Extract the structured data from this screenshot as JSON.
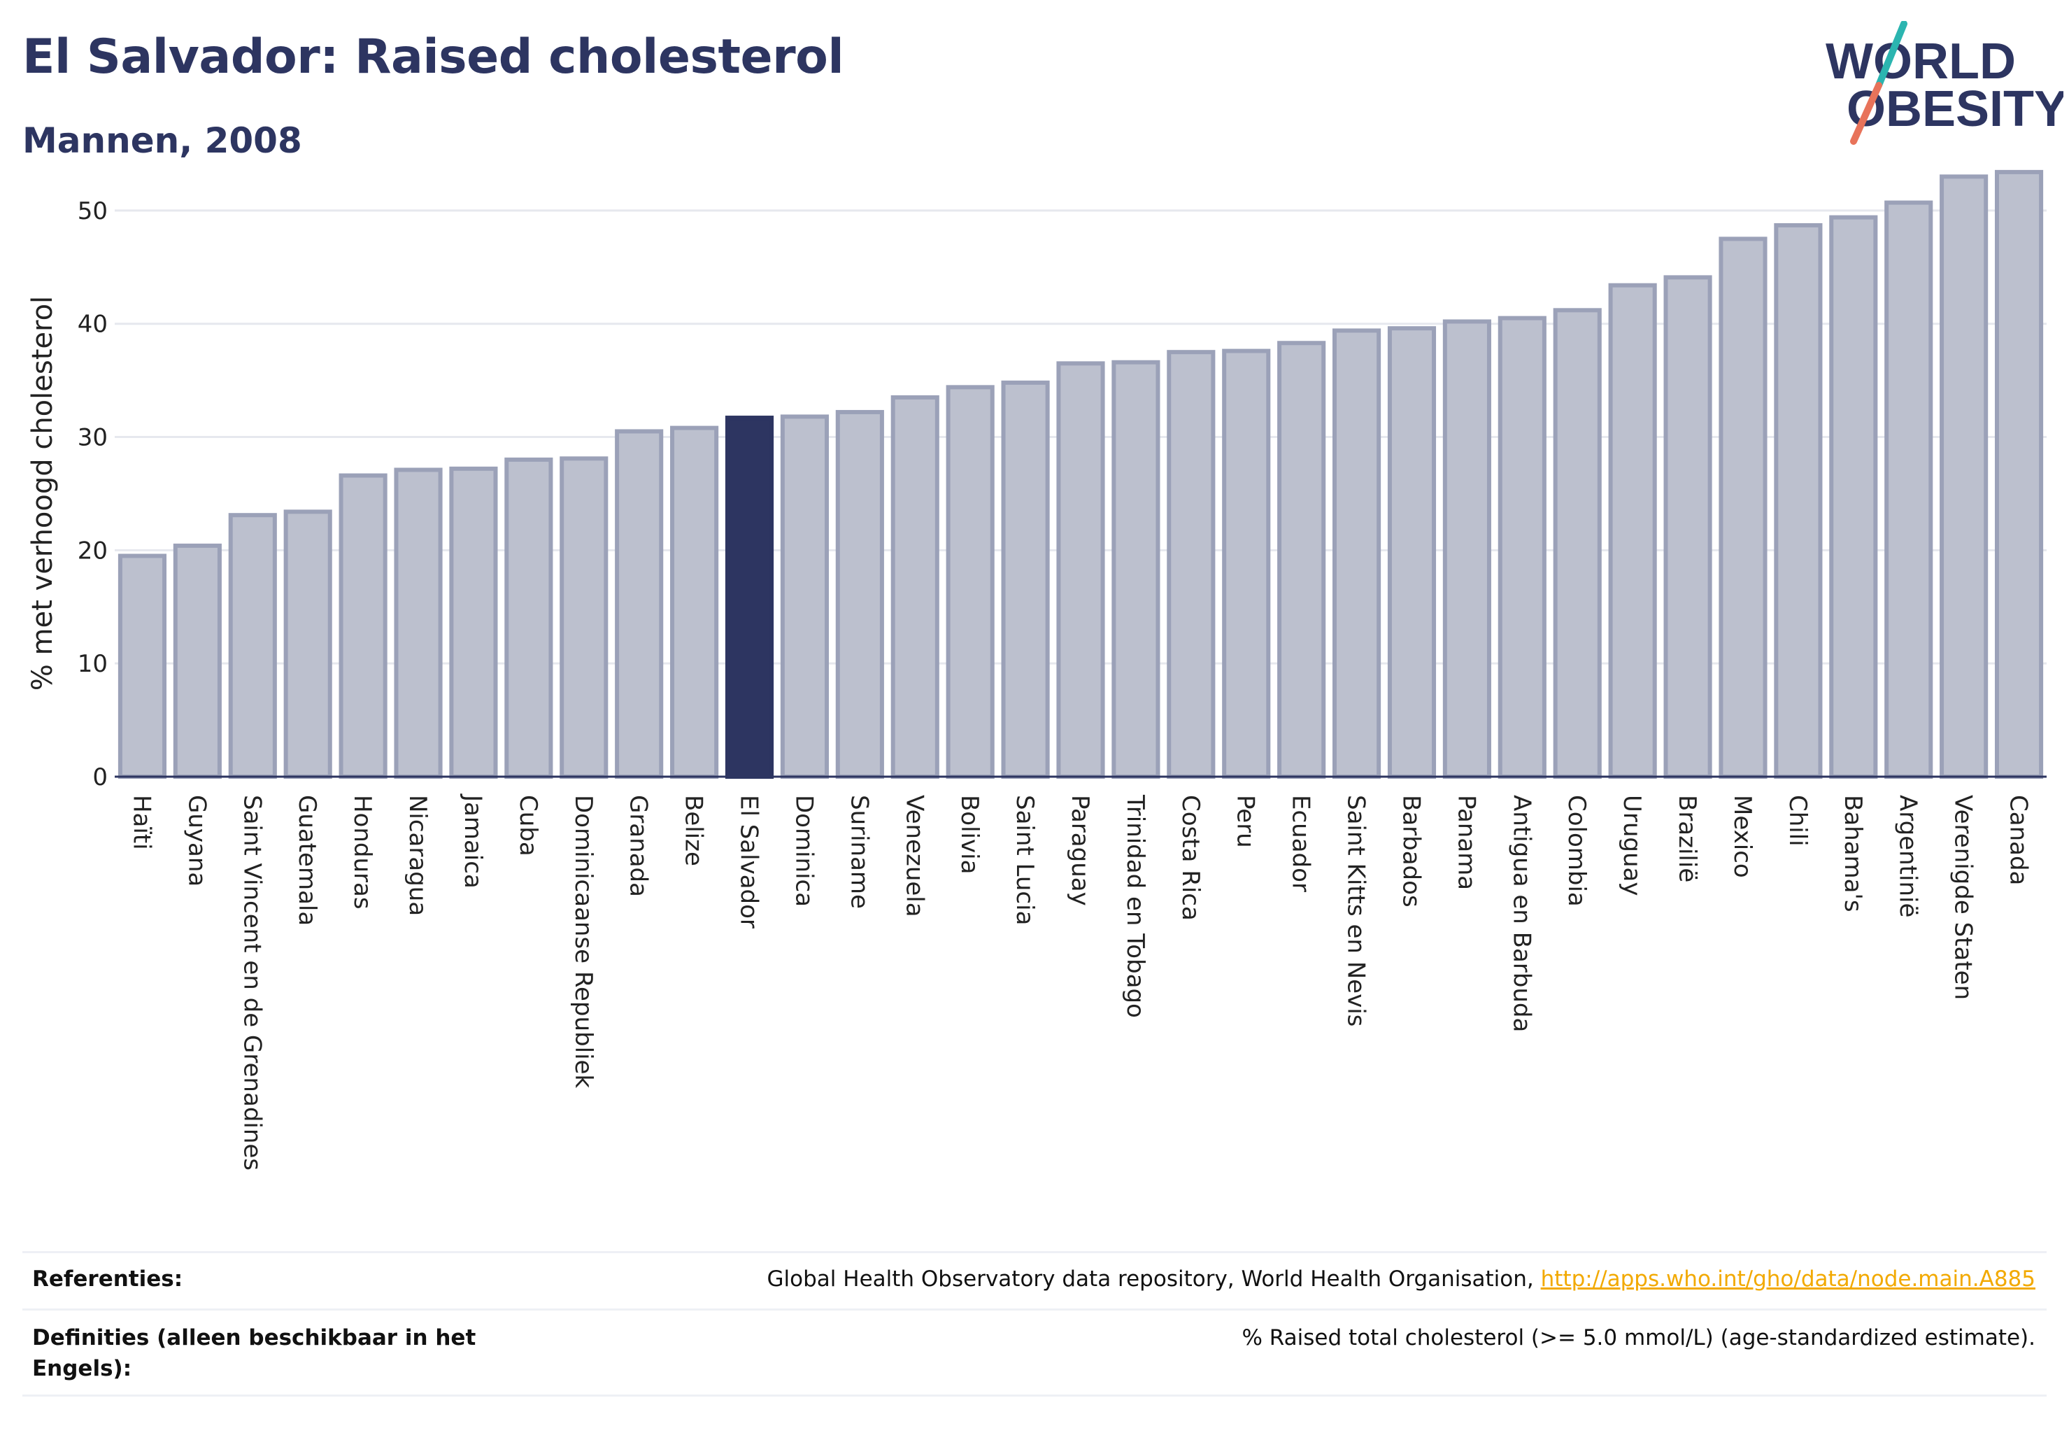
{
  "header": {
    "title": "El Salvador: Raised cholesterol",
    "subtitle": "Mannen, 2008",
    "logo_line1": "WORLD",
    "logo_line2": "OBESITY"
  },
  "colors": {
    "title": "#2d3561",
    "highlight_bar": "#2d3561",
    "bar_fill": "#bcc0ce",
    "bar_stroke": "#9ba1b8",
    "logo_teal": "#2bb5b0",
    "logo_coral": "#e8735a",
    "link": "#f2a900"
  },
  "chart_data": {
    "type": "bar",
    "title": "El Salvador: Raised cholesterol",
    "subtitle": "Mannen, 2008",
    "ylabel": "% met verhoogd cholesterol",
    "xlabel": "",
    "ylim": [
      0,
      55
    ],
    "yticks": [
      0,
      10,
      20,
      30,
      40,
      50
    ],
    "grid": true,
    "highlight": "El Salvador",
    "categories": [
      "Haïti",
      "Guyana",
      "Saint Vincent en de Grenadines",
      "Guatemala",
      "Honduras",
      "Nicaragua",
      "Jamaica",
      "Cuba",
      "Dominicaanse Republiek",
      "Granada",
      "Belize",
      "El Salvador",
      "Dominica",
      "Suriname",
      "Venezuela",
      "Bolivia",
      "Saint Lucia",
      "Paraguay",
      "Trinidad en Tobago",
      "Costa Rica",
      "Peru",
      "Ecuador",
      "Saint Kitts en Nevis",
      "Barbados",
      "Panama",
      "Antigua en Barbuda",
      "Colombia",
      "Uruguay",
      "Brazilië",
      "Mexico",
      "Chili",
      "Bahama's",
      "Argentinië",
      "Verenigde Staten",
      "Canada"
    ],
    "values": [
      19.5,
      20.4,
      23.1,
      23.4,
      26.6,
      27.1,
      27.2,
      28.0,
      28.1,
      30.5,
      30.8,
      31.7,
      31.8,
      32.2,
      33.5,
      34.4,
      34.8,
      36.5,
      36.6,
      37.5,
      37.6,
      38.3,
      39.4,
      39.6,
      40.2,
      40.5,
      41.2,
      43.4,
      44.1,
      47.5,
      48.7,
      49.4,
      50.7,
      53.0,
      53.4
    ]
  },
  "footer": {
    "references_label": "Referenties:",
    "references_text": "Global Health Observatory data repository, World Health Organisation, ",
    "references_link": "http://apps.who.int/gho/data/node.main.A885",
    "definitions_label": "Definities (alleen beschikbaar in het Engels):",
    "definitions_text": "% Raised total cholesterol (>= 5.0 mmol/L) (age-standardized estimate)."
  }
}
